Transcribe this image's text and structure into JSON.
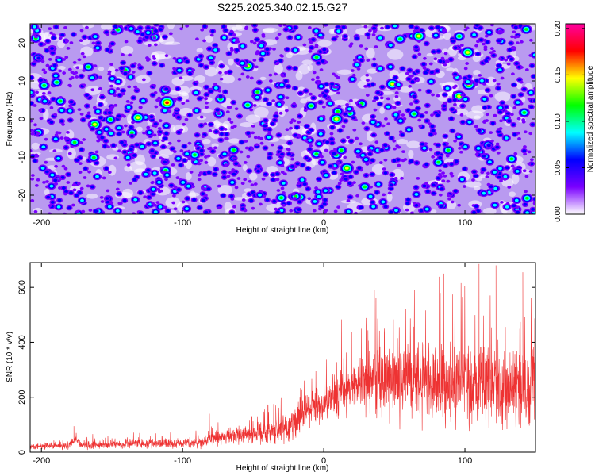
{
  "chart_data": [
    {
      "type": "heatmap",
      "title": "S225.2025.340.02.15.G27",
      "xlabel": "Height of straight line (km)",
      "ylabel": "Frequency (Hz)",
      "xlim": [
        -208,
        150
      ],
      "ylim": [
        -25,
        25
      ],
      "x_ticks": [
        {
          "value": -200,
          "label": "-200"
        },
        {
          "value": -100,
          "label": "-100"
        },
        {
          "value": 0,
          "label": "0"
        },
        {
          "value": 100,
          "label": "100"
        }
      ],
      "y_ticks": [
        {
          "value": 20,
          "label": "20"
        },
        {
          "value": 10,
          "label": "10"
        },
        {
          "value": 0,
          "label": "0"
        },
        {
          "value": -10,
          "label": "-10"
        },
        {
          "value": -20,
          "label": "-20"
        }
      ],
      "colorbar": {
        "label": "Normalized spectral amplitude",
        "range": [
          0,
          0.205
        ],
        "ticks": [
          {
            "value": 0.0,
            "label": "0.00"
          },
          {
            "value": 0.05,
            "label": "0.05"
          },
          {
            "value": 0.1,
            "label": "0.10"
          },
          {
            "value": 0.15,
            "label": "0.15"
          },
          {
            "value": 0.2,
            "label": "0.20"
          }
        ],
        "colors": [
          "#ffffff",
          "#7a00ff",
          "#0000ff",
          "#00ffff",
          "#00ff00",
          "#ffff00",
          "#ff0000",
          "#ff00a0"
        ]
      }
    },
    {
      "type": "line",
      "xlabel": "Height of straight line (km)",
      "ylabel": "SNR (10 * v/v)",
      "xlim": [
        -208,
        150
      ],
      "ylim": [
        0,
        690
      ],
      "x_ticks": [
        {
          "value": -200,
          "label": "-200"
        },
        {
          "value": -100,
          "label": "-100"
        },
        {
          "value": 0,
          "label": "0"
        },
        {
          "value": 100,
          "label": "100"
        }
      ],
      "y_ticks": [
        {
          "value": 0,
          "label": "0"
        },
        {
          "value": 200,
          "label": "200"
        },
        {
          "value": 400,
          "label": "400"
        },
        {
          "value": 600,
          "label": "600"
        }
      ],
      "series": [
        {
          "name": "SNR",
          "color": "#ee3333",
          "trend": {
            "x": [
              -208,
              -180,
              -176,
              -172,
              -150,
              -120,
              -100,
              -88,
              -80,
              -70,
              -50,
              -30,
              -20,
              -16,
              -5,
              5,
              20,
              30,
              45,
              60,
              80,
              100,
              120,
              140,
              150
            ],
            "y": [
              20,
              25,
              50,
              25,
              28,
              30,
              32,
              35,
              50,
              55,
              65,
              80,
              100,
              140,
              170,
              190,
              230,
              260,
              270,
              260,
              260,
              240,
              240,
              225,
              220
            ]
          },
          "spread": {
            "x": [
              -208,
              -180,
              -150,
              -100,
              -80,
              -50,
              -20,
              0,
              20,
              40,
              80,
              120,
              150
            ],
            "y": [
              8,
              12,
              12,
              14,
              20,
              28,
              45,
              60,
              85,
              110,
              130,
              120,
              115
            ]
          },
          "peaks": [
            {
              "x": -177,
              "y": 95
            },
            {
              "x": -81,
              "y": 140
            },
            {
              "x": -34,
              "y": 170
            },
            {
              "x": -16,
              "y": 285
            },
            {
              "x": 30,
              "y": 460
            },
            {
              "x": 37,
              "y": 560
            },
            {
              "x": 58,
              "y": 520
            },
            {
              "x": 85,
              "y": 650
            },
            {
              "x": 110,
              "y": 685
            },
            {
              "x": 122,
              "y": 680
            },
            {
              "x": 141,
              "y": 655
            }
          ]
        }
      ]
    }
  ]
}
